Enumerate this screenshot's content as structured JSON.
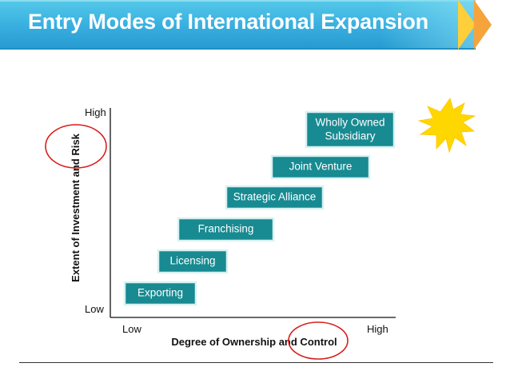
{
  "slide": {
    "title": "Entry Modes of International Expansion"
  },
  "diagram": {
    "y_axis": {
      "title": "Extent of Investment and Risk",
      "high_label": "High",
      "low_label": "Low"
    },
    "x_axis": {
      "title": "Degree of Ownership and Control",
      "low_label": "Low",
      "high_label": "High"
    },
    "entry_modes": [
      {
        "label_lines": [
          "Exporting"
        ]
      },
      {
        "label_lines": [
          "Licensing"
        ]
      },
      {
        "label_lines": [
          "Franchising"
        ]
      },
      {
        "label_lines": [
          "Strategic Alliance"
        ]
      },
      {
        "label_lines": [
          "Joint Venture"
        ]
      },
      {
        "label_lines": [
          "Wholly Owned",
          "Subsidiary"
        ]
      }
    ]
  },
  "colors": {
    "title_bar": "#37aedf",
    "box_fill": "#188a91",
    "highlight_circle": "#d91e1e",
    "starburst": "#ffd700",
    "chevron_primary": "#ffcf3b",
    "chevron_secondary": "#f5a33b"
  },
  "icons": {
    "accent_shape": "starburst-icon",
    "title_decoration": "chevron-arrows-icon"
  }
}
